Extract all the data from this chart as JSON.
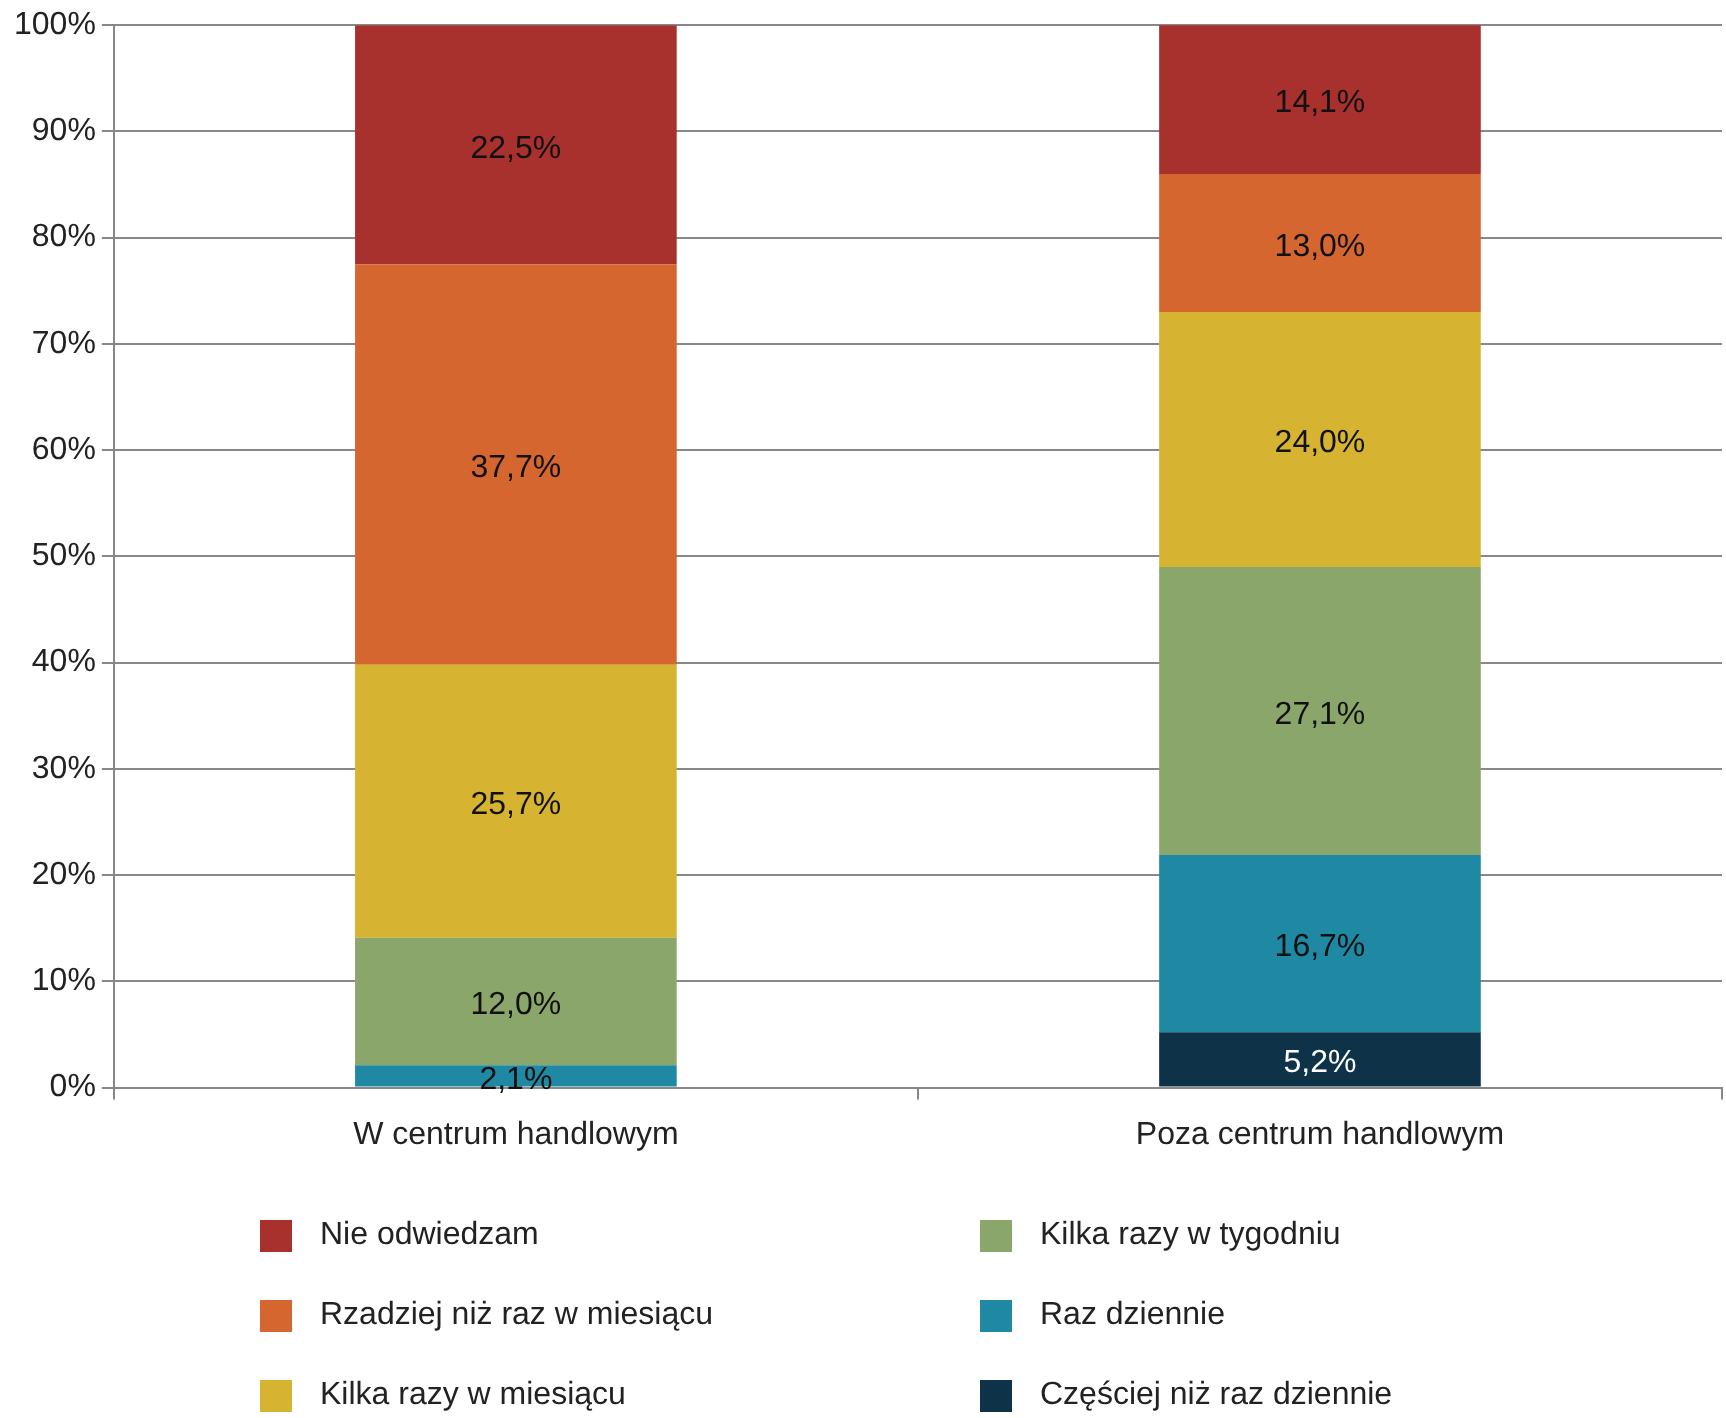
{
  "chart_data": {
    "type": "bar",
    "stacked": true,
    "categories": [
      "W centrum handlowym",
      "Poza centrum handlowym"
    ],
    "series": [
      {
        "name": "Częściej niż raz dziennie",
        "color": "#0e3349",
        "values": [
          0,
          5.2
        ],
        "value_labels": [
          null,
          "5,2%"
        ]
      },
      {
        "name": "Raz dziennie",
        "color": "#1f88a3",
        "values": [
          2.1,
          16.7
        ],
        "value_labels": [
          "2,1%",
          "16,7%"
        ]
      },
      {
        "name": "Kilka razy w tygodniu",
        "color": "#8ba66a",
        "values": [
          12.0,
          27.1
        ],
        "value_labels": [
          "12,0%",
          "27,1%"
        ]
      },
      {
        "name": "Kilka razy w miesiącu",
        "color": "#d6b431",
        "values": [
          25.7,
          24.0
        ],
        "value_labels": [
          "25,7%",
          "24,0%"
        ]
      },
      {
        "name": "Rzadziej niż raz w miesiącu",
        "color": "#d6662f",
        "values": [
          37.7,
          13.0
        ],
        "value_labels": [
          "37,7%",
          "13,0%"
        ]
      },
      {
        "name": "Nie odwiedzam",
        "color": "#a8302d",
        "values": [
          22.5,
          14.1
        ],
        "value_labels": [
          "22,5%",
          "14,1%"
        ]
      }
    ],
    "ylim": [
      0,
      100
    ],
    "yticks": [
      {
        "value": 0,
        "label": "0%"
      },
      {
        "value": 10,
        "label": "10%"
      },
      {
        "value": 20,
        "label": "20%"
      },
      {
        "value": 30,
        "label": "30%"
      },
      {
        "value": 40,
        "label": "40%"
      },
      {
        "value": 50,
        "label": "50%"
      },
      {
        "value": 60,
        "label": "60%"
      },
      {
        "value": 70,
        "label": "70%"
      },
      {
        "value": 80,
        "label": "80%"
      },
      {
        "value": 90,
        "label": "90%"
      },
      {
        "value": 100,
        "label": "100%"
      }
    ],
    "grid": "y",
    "legend": "bottom"
  }
}
